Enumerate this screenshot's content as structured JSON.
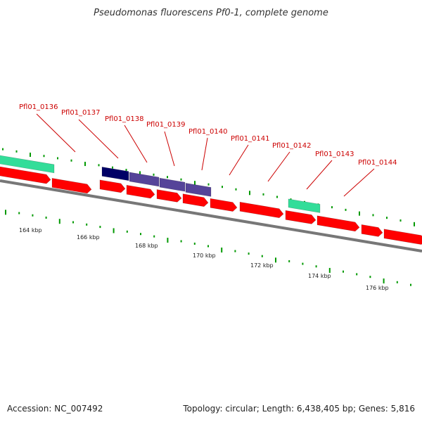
{
  "title": "Pseudomonas fluorescens Pf0-1, complete genome",
  "footer": {
    "accession": "Accession: NC_007492",
    "stats": "Topology: circular; Length: 6,438,405 bp; Genes: 5,816"
  },
  "colors": {
    "label": "#cc0000",
    "leader": "#cc0000",
    "cds": "#ff0000",
    "rna": "#33dd99",
    "highlight_dark": "#000066",
    "highlight": "#554499",
    "tick": "#009900",
    "backbone": "#777777"
  },
  "gene_labels": [
    "Pfl01_0136",
    "Pfl01_0137",
    "Pfl01_0138",
    "Pfl01_0139",
    "Pfl01_0140",
    "Pfl01_0141",
    "Pfl01_0142",
    "Pfl01_0143",
    "Pfl01_0144"
  ],
  "kbp_labels": [
    "164 kbp",
    "166 kbp",
    "168 kbp",
    "170 kbp",
    "172 kbp",
    "174 kbp",
    "176 kbp"
  ]
}
